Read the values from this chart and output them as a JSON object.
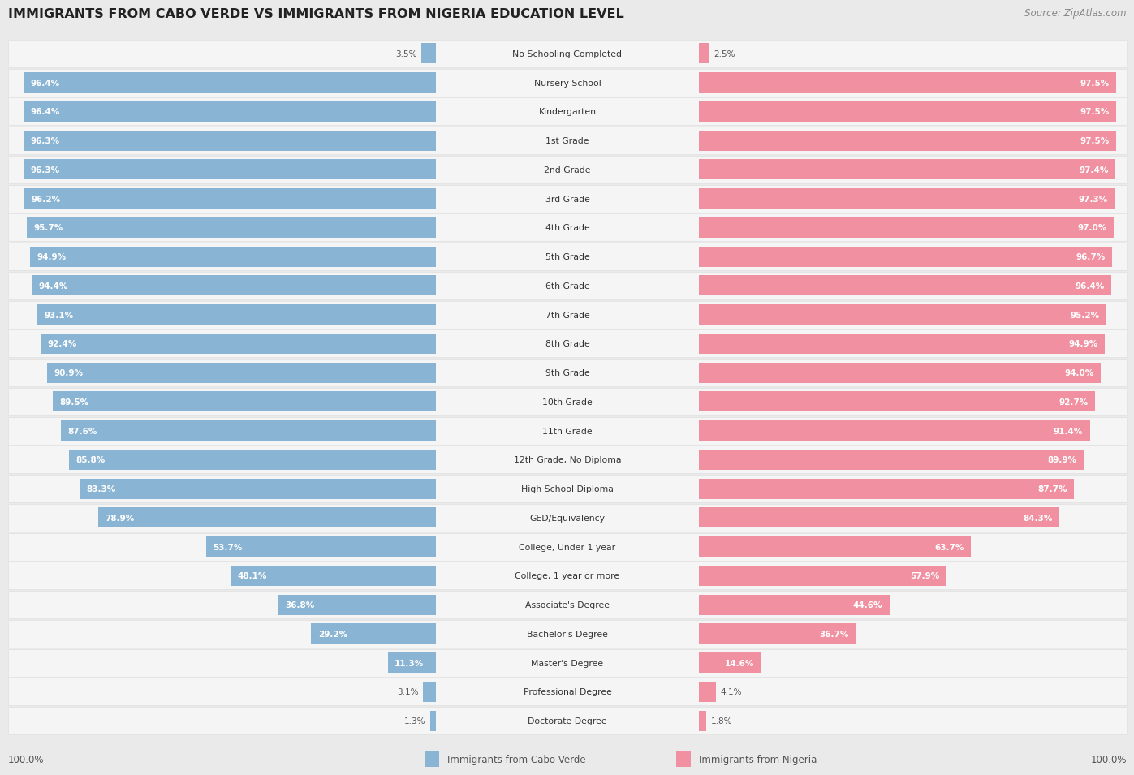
{
  "title": "IMMIGRANTS FROM CABO VERDE VS IMMIGRANTS FROM NIGERIA EDUCATION LEVEL",
  "source": "Source: ZipAtlas.com",
  "categories": [
    "No Schooling Completed",
    "Nursery School",
    "Kindergarten",
    "1st Grade",
    "2nd Grade",
    "3rd Grade",
    "4th Grade",
    "5th Grade",
    "6th Grade",
    "7th Grade",
    "8th Grade",
    "9th Grade",
    "10th Grade",
    "11th Grade",
    "12th Grade, No Diploma",
    "High School Diploma",
    "GED/Equivalency",
    "College, Under 1 year",
    "College, 1 year or more",
    "Associate's Degree",
    "Bachelor's Degree",
    "Master's Degree",
    "Professional Degree",
    "Doctorate Degree"
  ],
  "cabo_verde": [
    3.5,
    96.4,
    96.4,
    96.3,
    96.3,
    96.2,
    95.7,
    94.9,
    94.4,
    93.1,
    92.4,
    90.9,
    89.5,
    87.6,
    85.8,
    83.3,
    78.9,
    53.7,
    48.1,
    36.8,
    29.2,
    11.3,
    3.1,
    1.3
  ],
  "nigeria": [
    2.5,
    97.5,
    97.5,
    97.5,
    97.4,
    97.3,
    97.0,
    96.7,
    96.4,
    95.2,
    94.9,
    94.0,
    92.7,
    91.4,
    89.9,
    87.7,
    84.3,
    63.7,
    57.9,
    44.6,
    36.7,
    14.6,
    4.1,
    1.8
  ],
  "cabo_verde_color": "#8ab4d4",
  "nigeria_color": "#f090a0",
  "bg_color": "#eaeaea",
  "row_bg_color": "#f5f5f5",
  "legend_cabo_verde": "Immigrants from Cabo Verde",
  "legend_nigeria": "Immigrants from Nigeria"
}
